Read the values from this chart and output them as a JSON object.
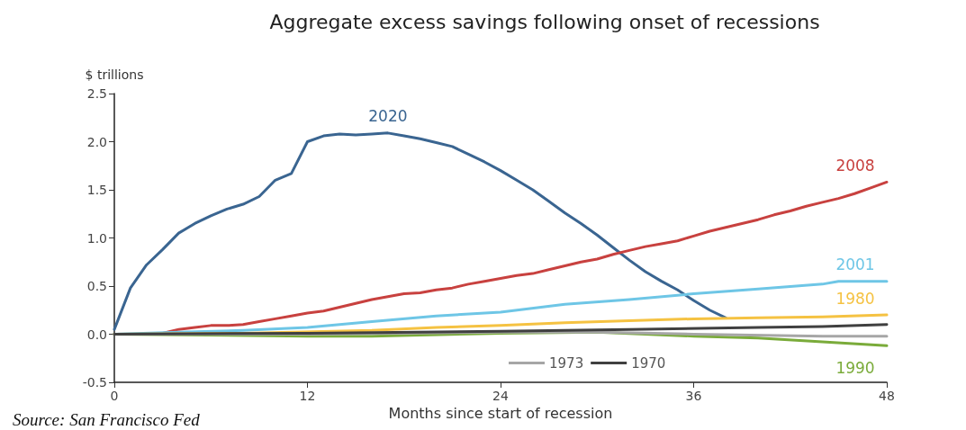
{
  "chart_data": {
    "type": "line",
    "title": "Aggregate excess savings following onset of recessions",
    "ylabel": "$ trillions",
    "xlabel": "Months since start of recession",
    "xlim": [
      0,
      48
    ],
    "xticks": [
      0,
      12,
      24,
      36,
      48
    ],
    "ylim": [
      -0.5,
      2.5
    ],
    "yticks": [
      -0.5,
      {
        "value": 0,
        "label": "0.0"
      },
      0.5,
      {
        "value": 1,
        "label": "1.0"
      },
      1.5,
      {
        "value": 2,
        "label": "2.0"
      },
      2.5
    ],
    "grid": false,
    "legend": "bottom",
    "marker": "none",
    "line_style": "solid",
    "series": [
      {
        "name": "2020",
        "color": "#3a6591",
        "x": [
          0,
          1,
          2,
          3,
          4,
          5,
          6,
          7,
          8,
          9,
          10,
          11,
          12,
          13,
          14,
          15,
          16,
          17,
          18,
          19,
          20,
          21,
          22,
          23,
          24,
          25,
          26,
          27,
          28,
          29,
          30,
          31,
          32,
          33,
          34,
          35,
          36,
          37,
          38
        ],
        "values": [
          0.05,
          0.48,
          0.72,
          0.88,
          1.05,
          1.15,
          1.23,
          1.3,
          1.35,
          1.43,
          1.6,
          1.67,
          2.0,
          2.06,
          2.08,
          2.07,
          2.08,
          2.09,
          2.06,
          2.03,
          1.99,
          1.95,
          1.87,
          1.79,
          1.7,
          1.6,
          1.5,
          1.38,
          1.26,
          1.15,
          1.03,
          0.9,
          0.77,
          0.65,
          0.55,
          0.46,
          0.35,
          0.25,
          0.17
        ]
      },
      {
        "name": "2008",
        "color": "#c8413f",
        "x": [
          0,
          2,
          3,
          4,
          5,
          6,
          7,
          8,
          9,
          10,
          11,
          12,
          13,
          14,
          15,
          16,
          17,
          18,
          19,
          20,
          21,
          22,
          23,
          24,
          25,
          26,
          27,
          28,
          29,
          30,
          31,
          32,
          33,
          34,
          35,
          36,
          37,
          38,
          39,
          40,
          41,
          42,
          43,
          44,
          45,
          46,
          47,
          48
        ],
        "values": [
          0,
          0,
          0.01,
          0.05,
          0.07,
          0.09,
          0.09,
          0.1,
          0.13,
          0.16,
          0.19,
          0.22,
          0.24,
          0.28,
          0.32,
          0.36,
          0.39,
          0.42,
          0.43,
          0.46,
          0.48,
          0.52,
          0.55,
          0.58,
          0.61,
          0.63,
          0.67,
          0.71,
          0.75,
          0.78,
          0.83,
          0.87,
          0.91,
          0.94,
          0.97,
          1.02,
          1.07,
          1.11,
          1.15,
          1.19,
          1.24,
          1.28,
          1.33,
          1.37,
          1.41,
          1.46,
          1.52,
          1.58
        ]
      },
      {
        "name": "2001",
        "color": "#6ec6e6",
        "x": [
          0,
          4,
          8,
          12,
          16,
          20,
          24,
          28,
          32,
          36,
          40,
          44,
          45,
          48
        ],
        "values": [
          0,
          0.02,
          0.04,
          0.07,
          0.13,
          0.19,
          0.23,
          0.31,
          0.36,
          0.42,
          0.47,
          0.52,
          0.55,
          0.55
        ]
      },
      {
        "name": "1980",
        "color": "#f5c242",
        "x": [
          0,
          8,
          16,
          20,
          24,
          28,
          32,
          36,
          40,
          44,
          48
        ],
        "values": [
          0,
          0.01,
          0.04,
          0.07,
          0.09,
          0.12,
          0.14,
          0.16,
          0.17,
          0.18,
          0.2
        ]
      },
      {
        "name": "1990",
        "color": "#7aab3a",
        "x": [
          0,
          12,
          16,
          24,
          30,
          36,
          40,
          44,
          48
        ],
        "values": [
          0,
          -0.02,
          -0.02,
          0.01,
          0.02,
          -0.02,
          -0.04,
          -0.08,
          -0.12
        ]
      },
      {
        "name": "1973",
        "color": "#a6a6a6",
        "x": [
          0,
          12,
          24,
          30,
          36,
          44,
          48
        ],
        "values": [
          0,
          0,
          0.02,
          0.02,
          0,
          -0.02,
          -0.02
        ]
      },
      {
        "name": "1970",
        "color": "#404040",
        "x": [
          0,
          12,
          24,
          32,
          40,
          44,
          48
        ],
        "values": [
          0,
          0.01,
          0.03,
          0.05,
          0.07,
          0.08,
          0.1
        ]
      }
    ],
    "annotations": [
      "Source: San Francisco Fed"
    ]
  }
}
